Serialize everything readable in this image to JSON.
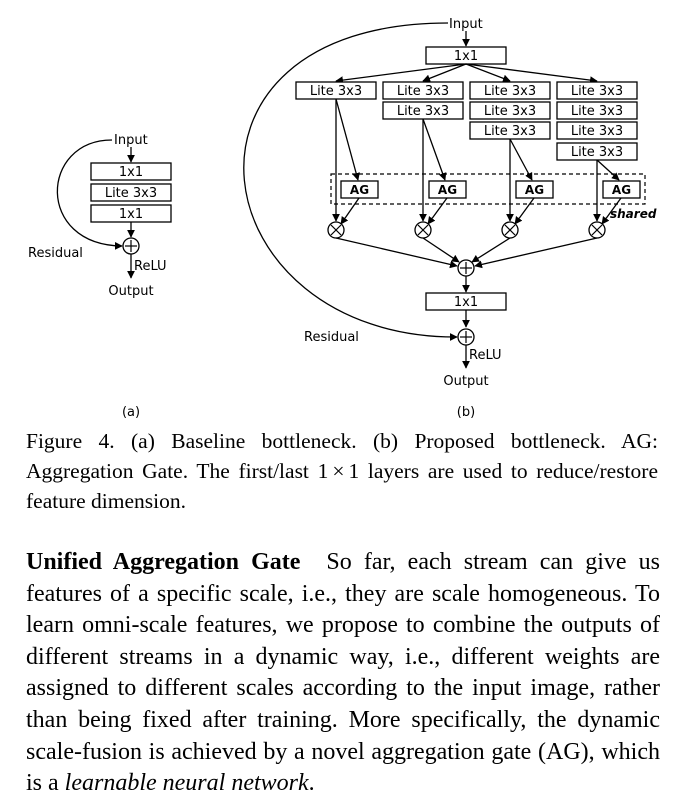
{
  "diagram": {
    "input": "Input",
    "output": "Output",
    "residual": "Residual",
    "relu": "ReLU",
    "conv1x1": "1x1",
    "lite3x3": "Lite 3x3",
    "ag": "AG",
    "shared": "shared",
    "label_a": "(a)",
    "label_b": "(b)"
  },
  "caption": {
    "part1": "Figure 4.  (a) Baseline bottleneck. (b) Proposed bottleneck. AG: Aggregation Gate.  The first/last 1",
    "times": "×",
    "part2": "1 layers are used to reduce/restore feature dimension."
  },
  "paragraph": {
    "heading": "Unified Aggregation Gate",
    "text1": "So far, each stream can give us features of a specific scale, i.e., they are scale homogeneous. To learn omni-scale features, we propose to combine the outputs of different streams in a dynamic way, i.e., different weights are assigned to different scales according to the input image, rather than being fixed after training. More specifically, the dynamic scale-fusion is achieved by a novel aggregation gate (AG), which is a ",
    "emphasis": "learnable neural network",
    "text2": "."
  }
}
